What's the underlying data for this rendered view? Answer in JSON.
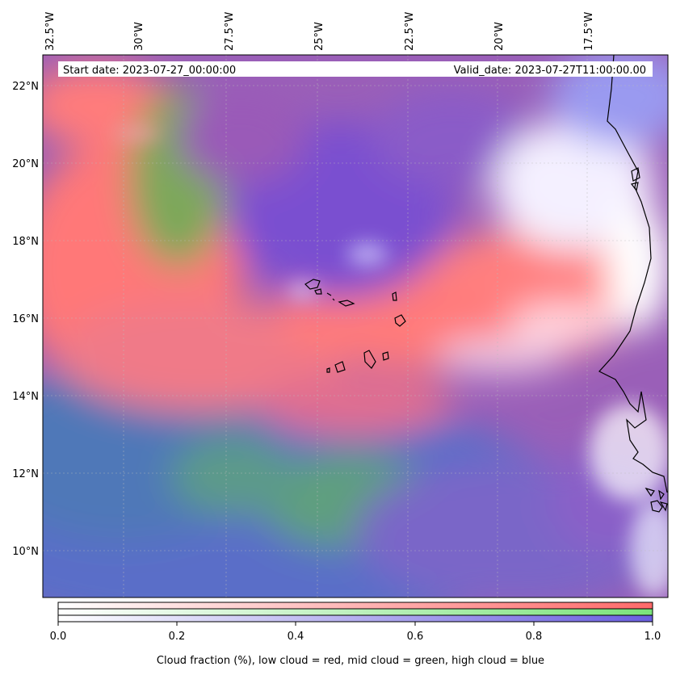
{
  "map": {
    "start_date_text": "Start date: 2023-07-27_00:00:00",
    "valid_date_text": "Valid_date: 2023-07-27T11:00:00.00",
    "longitude_ticks": [
      "32.5°W",
      "30°W",
      "27.5°W",
      "25°W",
      "22.5°W",
      "20°W",
      "17.5°W"
    ],
    "latitude_ticks": [
      "22°N",
      "20°N",
      "18°N",
      "16°N",
      "14°N",
      "12°N",
      "10°N"
    ],
    "extent": {
      "lon_min": -33.0,
      "lon_max": -16.0,
      "lat_min": 8.9,
      "lat_max": 22.8
    }
  },
  "colorbar": {
    "tick_labels": [
      "0.0",
      "0.2",
      "0.4",
      "0.6",
      "0.8",
      "1.0"
    ],
    "label": "Cloud fraction (%), low cloud = red, mid cloud = green, high cloud = blue",
    "range": [
      0.0,
      1.0
    ],
    "colors": {
      "low": "#ff6a6a",
      "mid": "#7be37b",
      "high": "#6a5fe0"
    }
  }
}
